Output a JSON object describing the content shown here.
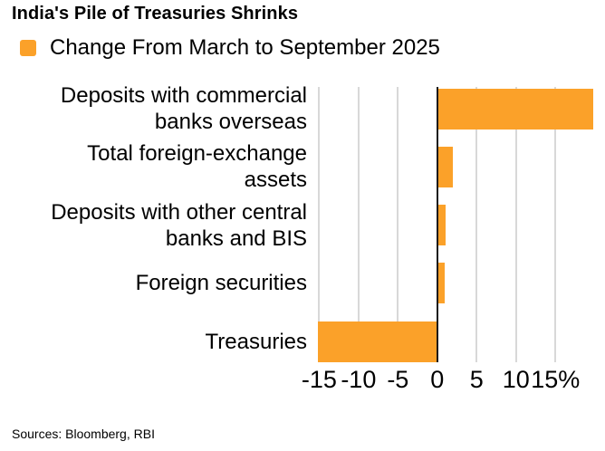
{
  "title": "India's Pile of Treasuries Shrinks",
  "legend": {
    "label": "Change From March to September 2025",
    "swatch_color": "#FBA129"
  },
  "footer": {
    "sources": "Sources: Bloomberg, RBI"
  },
  "chart_data": {
    "type": "bar",
    "orientation": "horizontal",
    "title": "India's Pile of Treasuries Shrinks",
    "series_name": "Change From March to September 2025",
    "categories": [
      "Deposits with commercial banks overseas",
      "Total foreign-exchange assets",
      "Deposits with other central banks and BIS",
      "Foreign securities",
      "Treasuries"
    ],
    "category_lines": [
      [
        "Deposits with commercial",
        "banks overseas"
      ],
      [
        "Total foreign-exchange",
        "assets"
      ],
      [
        "Deposits with other central",
        "banks and BIS"
      ],
      [
        "Foreign securities"
      ],
      [
        "Treasuries"
      ]
    ],
    "values": [
      19.8,
      2.0,
      1.1,
      0.9,
      -15.2
    ],
    "unit": "%",
    "xlabel": "",
    "ylabel": "",
    "xlim": [
      -15.5,
      20.6
    ],
    "tick_values": [
      -15,
      -10,
      -5,
      0,
      5,
      10,
      15
    ],
    "tick_labels": [
      "-15",
      "-10",
      "-5",
      "0",
      "5",
      "10",
      "15%"
    ],
    "grid": true,
    "legend_position": "top",
    "bar_color": "#FBA129",
    "gridline_color": "#D8D8D8",
    "axis_color": "#1A1A1A",
    "text_color": "#000000"
  }
}
